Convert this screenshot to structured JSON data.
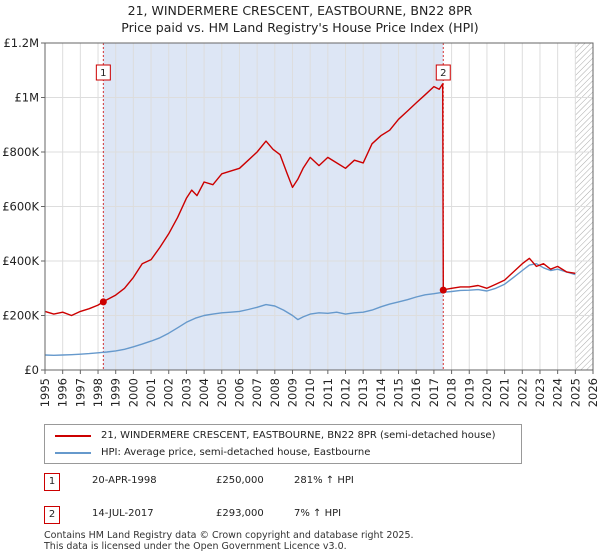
{
  "chart_data": {
    "type": "line",
    "title": "21, WINDERMERE CRESCENT, EASTBOURNE, BN22 8PR",
    "subtitle": "Price paid vs. HM Land Registry's House Price Index (HPI)",
    "xlabel": "",
    "ylabel": "",
    "xlim": [
      1995,
      2026
    ],
    "ylim": [
      0,
      1200000
    ],
    "x_ticks": [
      "1995",
      "1996",
      "1997",
      "1998",
      "1999",
      "2000",
      "2001",
      "2002",
      "2003",
      "2004",
      "2005",
      "2006",
      "2007",
      "2008",
      "2009",
      "2010",
      "2011",
      "2012",
      "2013",
      "2014",
      "2015",
      "2016",
      "2017",
      "2018",
      "2019",
      "2020",
      "2021",
      "2022",
      "2023",
      "2024",
      "2025",
      "2026"
    ],
    "y_ticks": [
      {
        "value": 0,
        "label": "£0"
      },
      {
        "value": 200000,
        "label": "£200K"
      },
      {
        "value": 400000,
        "label": "£400K"
      },
      {
        "value": 600000,
        "label": "£600K"
      },
      {
        "value": 800000,
        "label": "£800K"
      },
      {
        "value": 1000000,
        "label": "£1M"
      },
      {
        "value": 1200000,
        "label": "£1.2M"
      }
    ],
    "grid": true,
    "colors": {
      "property": "#cc0000",
      "hpi": "#6699cc",
      "shade": "#dde6f5",
      "hatch": "#999999",
      "grid": "#dddddd"
    },
    "purchase_span": [
      1998.3,
      2017.53
    ],
    "forecast_start": 2025.0,
    "series": [
      {
        "name": "21, WINDERMERE CRESCENT, EASTBOURNE, BN22 8PR (semi-detached house)",
        "color": "#cc0000",
        "x": [
          1995.0,
          1995.5,
          1996.0,
          1996.5,
          1997.0,
          1997.5,
          1998.0,
          1998.3,
          1998.5,
          1999.0,
          1999.5,
          2000.0,
          2000.5,
          2001.0,
          2001.5,
          2002.0,
          2002.5,
          2003.0,
          2003.3,
          2003.6,
          2004.0,
          2004.5,
          2005.0,
          2005.5,
          2006.0,
          2006.5,
          2007.0,
          2007.5,
          2007.9,
          2008.3,
          2008.7,
          2009.0,
          2009.3,
          2009.6,
          2010.0,
          2010.5,
          2011.0,
          2011.5,
          2012.0,
          2012.5,
          2013.0,
          2013.5,
          2014.0,
          2014.5,
          2015.0,
          2015.5,
          2016.0,
          2016.5,
          2017.0,
          2017.3,
          2017.5,
          2017.53,
          2017.6,
          2018.0,
          2018.5,
          2019.0,
          2019.5,
          2020.0,
          2020.5,
          2021.0,
          2021.5,
          2022.0,
          2022.4,
          2022.8,
          2023.2,
          2023.6,
          2024.0,
          2024.5,
          2025.0
        ],
        "values": [
          215000,
          205000,
          212000,
          200000,
          215000,
          225000,
          238000,
          250000,
          258000,
          275000,
          300000,
          340000,
          390000,
          405000,
          450000,
          500000,
          560000,
          630000,
          660000,
          640000,
          690000,
          680000,
          720000,
          730000,
          740000,
          770000,
          800000,
          840000,
          810000,
          790000,
          720000,
          670000,
          700000,
          740000,
          780000,
          750000,
          780000,
          760000,
          740000,
          770000,
          760000,
          830000,
          860000,
          880000,
          920000,
          950000,
          980000,
          1010000,
          1040000,
          1030000,
          1050000,
          293000,
          295000,
          300000,
          305000,
          305000,
          310000,
          300000,
          315000,
          330000,
          360000,
          390000,
          410000,
          380000,
          390000,
          370000,
          380000,
          360000,
          355000
        ]
      },
      {
        "name": "HPI: Average price, semi-detached house, Eastbourne",
        "color": "#6699cc",
        "x": [
          1995.0,
          1995.5,
          1996.0,
          1996.5,
          1997.0,
          1997.5,
          1998.0,
          1998.5,
          1999.0,
          1999.5,
          2000.0,
          2000.5,
          2001.0,
          2001.5,
          2002.0,
          2002.5,
          2003.0,
          2003.5,
          2004.0,
          2004.5,
          2005.0,
          2005.5,
          2006.0,
          2006.5,
          2007.0,
          2007.5,
          2008.0,
          2008.5,
          2009.0,
          2009.3,
          2009.6,
          2010.0,
          2010.5,
          2011.0,
          2011.5,
          2012.0,
          2012.5,
          2013.0,
          2013.5,
          2014.0,
          2014.5,
          2015.0,
          2015.5,
          2016.0,
          2016.5,
          2017.0,
          2017.5,
          2018.0,
          2018.5,
          2019.0,
          2019.5,
          2020.0,
          2020.5,
          2021.0,
          2021.5,
          2022.0,
          2022.4,
          2022.8,
          2023.2,
          2023.6,
          2024.0,
          2024.5,
          2025.0
        ],
        "values": [
          55000,
          54000,
          55000,
          56000,
          58000,
          60000,
          63000,
          66000,
          70000,
          76000,
          85000,
          95000,
          106000,
          118000,
          135000,
          155000,
          175000,
          190000,
          200000,
          205000,
          210000,
          212000,
          215000,
          222000,
          230000,
          240000,
          235000,
          220000,
          200000,
          185000,
          195000,
          205000,
          210000,
          208000,
          212000,
          205000,
          210000,
          212000,
          220000,
          232000,
          242000,
          250000,
          258000,
          268000,
          276000,
          280000,
          285000,
          288000,
          292000,
          293000,
          295000,
          290000,
          300000,
          315000,
          340000,
          365000,
          385000,
          390000,
          375000,
          365000,
          370000,
          360000,
          350000
        ]
      }
    ],
    "markers": [
      {
        "label": "1",
        "x": 1998.3,
        "value": 250000
      },
      {
        "label": "2",
        "x": 2017.53,
        "value": 293000
      }
    ],
    "legend": {
      "placement": "below"
    }
  },
  "legend": {
    "property_label": "21, WINDERMERE CRESCENT, EASTBOURNE, BN22 8PR (semi-detached house)",
    "hpi_label": "HPI: Average price, semi-detached house, Eastbourne"
  },
  "sales": [
    {
      "num": "1",
      "date": "20-APR-1998",
      "price": "£250,000",
      "hpi": "281% ↑ HPI"
    },
    {
      "num": "2",
      "date": "14-JUL-2017",
      "price": "£293,000",
      "hpi": "7% ↑ HPI"
    }
  ],
  "footer": {
    "line1": "Contains HM Land Registry data © Crown copyright and database right 2025.",
    "line2": "This data is licensed under the Open Government Licence v3.0."
  }
}
